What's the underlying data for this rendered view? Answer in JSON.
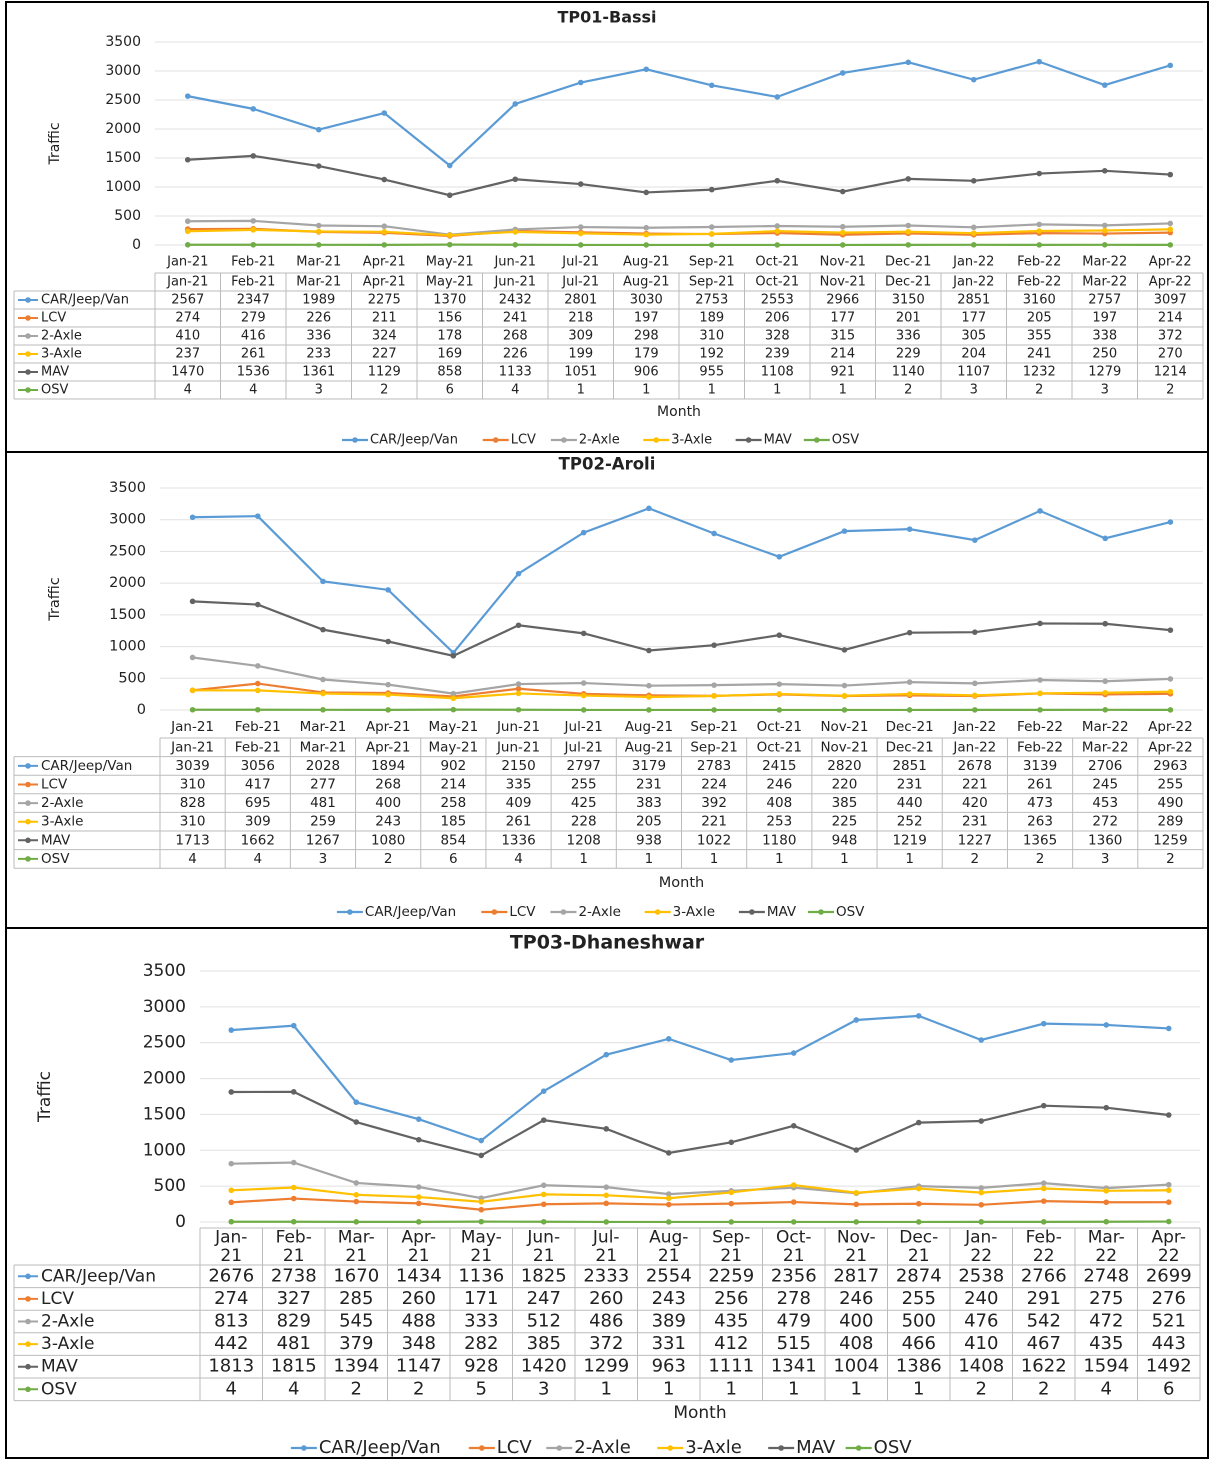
{
  "chart_data": [
    {
      "type": "line",
      "title": "TP01-Bassi",
      "ylabel": "Traffic",
      "xlabel": "Month",
      "categories": [
        "Jan-21",
        "Feb-21",
        "Mar-21",
        "Apr-21",
        "May-21",
        "Jun-21",
        "Jul-21",
        "Aug-21",
        "Sep-21",
        "Oct-21",
        "Nov-21",
        "Dec-21",
        "Jan-22",
        "Feb-22",
        "Mar-22",
        "Apr-22"
      ],
      "ylim": [
        0,
        3500
      ],
      "yticks": [
        0,
        500,
        1000,
        1500,
        2000,
        2500,
        3000,
        3500
      ],
      "grid": true,
      "legend": "bottom",
      "series": [
        {
          "name": "CAR/Jeep/Van",
          "color": "#5b9bd5",
          "values": [
            2567,
            2347,
            1989,
            2275,
            1370,
            2432,
            2801,
            3030,
            2753,
            2553,
            2966,
            3150,
            2851,
            3160,
            2757,
            3097
          ]
        },
        {
          "name": "LCV",
          "color": "#ed7d31",
          "values": [
            274,
            279,
            226,
            211,
            156,
            241,
            218,
            197,
            189,
            206,
            177,
            201,
            177,
            205,
            197,
            214
          ]
        },
        {
          "name": "2-Axle",
          "color": "#a5a5a5",
          "values": [
            410,
            416,
            336,
            324,
            178,
            268,
            309,
            298,
            310,
            328,
            315,
            336,
            305,
            355,
            338,
            372
          ]
        },
        {
          "name": "3-Axle",
          "color": "#ffc000",
          "values": [
            237,
            261,
            233,
            227,
            169,
            226,
            199,
            179,
            192,
            239,
            214,
            229,
            204,
            241,
            250,
            270
          ]
        },
        {
          "name": "MAV",
          "color": "#636363",
          "values": [
            1470,
            1536,
            1361,
            1129,
            858,
            1133,
            1051,
            906,
            955,
            1108,
            921,
            1140,
            1107,
            1232,
            1279,
            1214
          ]
        },
        {
          "name": "OSV",
          "color": "#70ad47",
          "values": [
            4,
            4,
            3,
            2,
            6,
            4,
            1,
            1,
            1,
            1,
            1,
            2,
            3,
            2,
            3,
            2
          ]
        }
      ]
    },
    {
      "type": "line",
      "title": "TP02-Aroli",
      "ylabel": "Traffic",
      "xlabel": "Month",
      "categories": [
        "Jan-21",
        "Feb-21",
        "Mar-21",
        "Apr-21",
        "May-21",
        "Jun-21",
        "Jul-21",
        "Aug-21",
        "Sep-21",
        "Oct-21",
        "Nov-21",
        "Dec-21",
        "Jan-22",
        "Feb-22",
        "Mar-22",
        "Apr-22"
      ],
      "ylim": [
        0,
        3500
      ],
      "yticks": [
        0,
        500,
        1000,
        1500,
        2000,
        2500,
        3000,
        3500
      ],
      "grid": true,
      "legend": "bottom",
      "series": [
        {
          "name": "CAR/Jeep/Van",
          "color": "#5b9bd5",
          "values": [
            3039,
            3056,
            2028,
            1894,
            902,
            2150,
            2797,
            3179,
            2783,
            2415,
            2820,
            2851,
            2678,
            3139,
            2706,
            2963
          ]
        },
        {
          "name": "LCV",
          "color": "#ed7d31",
          "values": [
            310,
            417,
            277,
            268,
            214,
            335,
            255,
            231,
            224,
            246,
            220,
            231,
            221,
            261,
            245,
            255
          ]
        },
        {
          "name": "2-Axle",
          "color": "#a5a5a5",
          "values": [
            828,
            695,
            481,
            400,
            258,
            409,
            425,
            383,
            392,
            408,
            385,
            440,
            420,
            473,
            453,
            490
          ]
        },
        {
          "name": "3-Axle",
          "color": "#ffc000",
          "values": [
            310,
            309,
            259,
            243,
            185,
            261,
            228,
            205,
            221,
            253,
            225,
            252,
            231,
            263,
            272,
            289
          ]
        },
        {
          "name": "MAV",
          "color": "#636363",
          "values": [
            1713,
            1662,
            1267,
            1080,
            854,
            1336,
            1208,
            938,
            1022,
            1180,
            948,
            1219,
            1227,
            1365,
            1360,
            1259
          ]
        },
        {
          "name": "OSV",
          "color": "#70ad47",
          "values": [
            4,
            4,
            3,
            2,
            6,
            4,
            1,
            1,
            1,
            1,
            1,
            1,
            2,
            2,
            3,
            2
          ]
        }
      ]
    },
    {
      "type": "line",
      "title": "TP03-Dhaneshwar",
      "ylabel": "Traffic",
      "xlabel": "Month",
      "categories": [
        "Jan-21",
        "Feb-21",
        "Mar-21",
        "Apr-21",
        "May-21",
        "Jun-21",
        "Jul-21",
        "Aug-21",
        "Sep-21",
        "Oct-21",
        "Nov-21",
        "Dec-21",
        "Jan-22",
        "Feb-22",
        "Mar-22",
        "Apr-22"
      ],
      "ylim": [
        0,
        3500
      ],
      "yticks": [
        0,
        500,
        1000,
        1500,
        2000,
        2500,
        3000,
        3500
      ],
      "grid": true,
      "legend": "bottom",
      "series": [
        {
          "name": "CAR/Jeep/Van",
          "color": "#5b9bd5",
          "values": [
            2676,
            2738,
            1670,
            1434,
            1136,
            1825,
            2333,
            2554,
            2259,
            2356,
            2817,
            2874,
            2538,
            2766,
            2748,
            2699
          ]
        },
        {
          "name": "LCV",
          "color": "#ed7d31",
          "values": [
            274,
            327,
            285,
            260,
            171,
            247,
            260,
            243,
            256,
            278,
            246,
            255,
            240,
            291,
            275,
            276
          ]
        },
        {
          "name": "2-Axle",
          "color": "#a5a5a5",
          "values": [
            813,
            829,
            545,
            488,
            333,
            512,
            486,
            389,
            435,
            479,
            400,
            500,
            476,
            542,
            472,
            521
          ]
        },
        {
          "name": "3-Axle",
          "color": "#ffc000",
          "values": [
            442,
            481,
            379,
            348,
            282,
            385,
            372,
            331,
            412,
            515,
            408,
            466,
            410,
            467,
            435,
            443
          ]
        },
        {
          "name": "MAV",
          "color": "#636363",
          "values": [
            1813,
            1815,
            1394,
            1147,
            928,
            1420,
            1299,
            963,
            1111,
            1341,
            1004,
            1386,
            1408,
            1622,
            1594,
            1492
          ]
        },
        {
          "name": "OSV",
          "color": "#70ad47",
          "values": [
            4,
            4,
            2,
            2,
            5,
            3,
            1,
            1,
            1,
            1,
            1,
            1,
            2,
            2,
            4,
            6
          ]
        }
      ]
    }
  ]
}
